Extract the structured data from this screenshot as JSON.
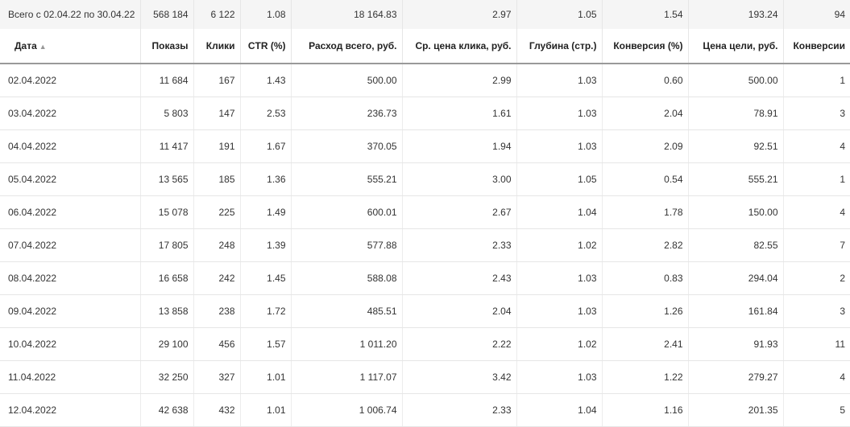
{
  "summary": {
    "label": "Всего с 02.04.22 по 30.04.22",
    "shows": "568 184",
    "clicks": "6 122",
    "ctr": "1.08",
    "spend": "18 164.83",
    "cpc": "2.97",
    "depth": "1.05",
    "conversion": "1.54",
    "goal_cost": "193.24",
    "conversions": "94"
  },
  "columns": {
    "date": "Дата",
    "date_sort": "▲",
    "shows": "Показы",
    "clicks": "Клики",
    "ctr": "CTR (%)",
    "spend": "Расход всего, руб.",
    "cpc": "Ср. цена клика, руб.",
    "depth": "Глубина (стр.)",
    "conversion": "Конверсия (%)",
    "goal_cost": "Цена цели, руб.",
    "conversions": "Конверсии"
  },
  "rows": [
    {
      "date": "02.04.2022",
      "shows": "11 684",
      "clicks": "167",
      "ctr": "1.43",
      "spend": "500.00",
      "cpc": "2.99",
      "depth": "1.03",
      "conversion": "0.60",
      "goal_cost": "500.00",
      "conversions": "1"
    },
    {
      "date": "03.04.2022",
      "shows": "5 803",
      "clicks": "147",
      "ctr": "2.53",
      "spend": "236.73",
      "cpc": "1.61",
      "depth": "1.03",
      "conversion": "2.04",
      "goal_cost": "78.91",
      "conversions": "3"
    },
    {
      "date": "04.04.2022",
      "shows": "11 417",
      "clicks": "191",
      "ctr": "1.67",
      "spend": "370.05",
      "cpc": "1.94",
      "depth": "1.03",
      "conversion": "2.09",
      "goal_cost": "92.51",
      "conversions": "4"
    },
    {
      "date": "05.04.2022",
      "shows": "13 565",
      "clicks": "185",
      "ctr": "1.36",
      "spend": "555.21",
      "cpc": "3.00",
      "depth": "1.05",
      "conversion": "0.54",
      "goal_cost": "555.21",
      "conversions": "1"
    },
    {
      "date": "06.04.2022",
      "shows": "15 078",
      "clicks": "225",
      "ctr": "1.49",
      "spend": "600.01",
      "cpc": "2.67",
      "depth": "1.04",
      "conversion": "1.78",
      "goal_cost": "150.00",
      "conversions": "4"
    },
    {
      "date": "07.04.2022",
      "shows": "17 805",
      "clicks": "248",
      "ctr": "1.39",
      "spend": "577.88",
      "cpc": "2.33",
      "depth": "1.02",
      "conversion": "2.82",
      "goal_cost": "82.55",
      "conversions": "7"
    },
    {
      "date": "08.04.2022",
      "shows": "16 658",
      "clicks": "242",
      "ctr": "1.45",
      "spend": "588.08",
      "cpc": "2.43",
      "depth": "1.03",
      "conversion": "0.83",
      "goal_cost": "294.04",
      "conversions": "2"
    },
    {
      "date": "09.04.2022",
      "shows": "13 858",
      "clicks": "238",
      "ctr": "1.72",
      "spend": "485.51",
      "cpc": "2.04",
      "depth": "1.03",
      "conversion": "1.26",
      "goal_cost": "161.84",
      "conversions": "3"
    },
    {
      "date": "10.04.2022",
      "shows": "29 100",
      "clicks": "456",
      "ctr": "1.57",
      "spend": "1 011.20",
      "cpc": "2.22",
      "depth": "1.02",
      "conversion": "2.41",
      "goal_cost": "91.93",
      "conversions": "11"
    },
    {
      "date": "11.04.2022",
      "shows": "32 250",
      "clicks": "327",
      "ctr": "1.01",
      "spend": "1 117.07",
      "cpc": "3.42",
      "depth": "1.03",
      "conversion": "1.22",
      "goal_cost": "279.27",
      "conversions": "4"
    },
    {
      "date": "12.04.2022",
      "shows": "42 638",
      "clicks": "432",
      "ctr": "1.01",
      "spend": "1 006.74",
      "cpc": "2.33",
      "depth": "1.04",
      "conversion": "1.16",
      "goal_cost": "201.35",
      "conversions": "5"
    }
  ]
}
